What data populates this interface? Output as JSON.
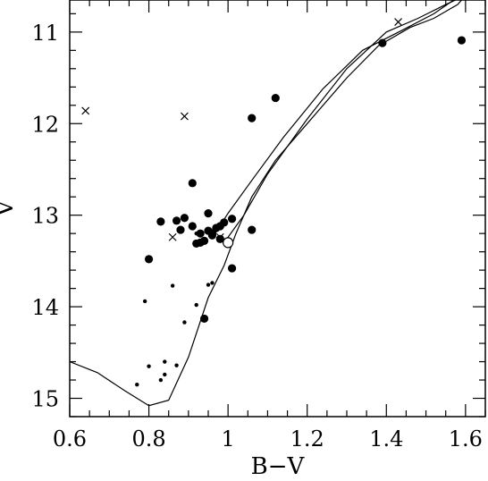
{
  "chart_data": {
    "type": "scatter",
    "title": "",
    "xlabel": "B−V",
    "ylabel": "V",
    "xlim": [
      0.6,
      1.65
    ],
    "ylim": [
      15.2,
      10.65
    ],
    "y_inverted": true,
    "grid": false,
    "x_ticks": [
      {
        "value": 0.6,
        "label": "0.6"
      },
      {
        "value": 0.8,
        "label": "0.8"
      },
      {
        "value": 1.0,
        "label": "1"
      },
      {
        "value": 1.2,
        "label": "1.2"
      },
      {
        "value": 1.4,
        "label": "1.4"
      },
      {
        "value": 1.6,
        "label": "1.6"
      }
    ],
    "y_ticks": [
      {
        "value": 11,
        "label": "11"
      },
      {
        "value": 12,
        "label": "12"
      },
      {
        "value": 13,
        "label": "13"
      },
      {
        "value": 14,
        "label": "14"
      },
      {
        "value": 15,
        "label": "15"
      }
    ],
    "isochrones": [
      {
        "points": [
          [
            0.6,
            14.6
          ],
          [
            0.67,
            14.72
          ],
          [
            0.74,
            14.92
          ],
          [
            0.8,
            15.08
          ],
          [
            0.85,
            15.02
          ],
          [
            0.9,
            14.55
          ],
          [
            0.95,
            13.9
          ],
          [
            0.99,
            13.55
          ],
          [
            1.02,
            13.2
          ],
          [
            1.06,
            12.8
          ],
          [
            1.12,
            12.4
          ],
          [
            1.2,
            12.0
          ],
          [
            1.3,
            11.5
          ],
          [
            1.38,
            11.15
          ],
          [
            1.46,
            10.95
          ],
          [
            1.52,
            10.85
          ],
          [
            1.58,
            10.7
          ],
          [
            1.6,
            10.6
          ]
        ]
      },
      {
        "points": [
          [
            0.99,
            13.3
          ],
          [
            1.04,
            13.0
          ],
          [
            1.1,
            12.55
          ],
          [
            1.2,
            11.95
          ],
          [
            1.3,
            11.4
          ],
          [
            1.4,
            11.0
          ],
          [
            1.48,
            10.85
          ],
          [
            1.55,
            10.7
          ],
          [
            1.6,
            10.6
          ]
        ]
      },
      {
        "points": [
          [
            0.96,
            13.25
          ],
          [
            1.0,
            12.98
          ],
          [
            1.06,
            12.62
          ],
          [
            1.14,
            12.15
          ],
          [
            1.24,
            11.62
          ],
          [
            1.34,
            11.2
          ],
          [
            1.44,
            10.98
          ],
          [
            1.52,
            10.8
          ],
          [
            1.57,
            10.65
          ]
        ]
      }
    ],
    "series": [
      {
        "marker": "filled-circle-large",
        "points": [
          [
            1.39,
            11.12
          ],
          [
            1.59,
            11.09
          ],
          [
            1.12,
            11.72
          ],
          [
            1.06,
            11.94
          ],
          [
            0.91,
            12.65
          ],
          [
            0.8,
            13.48
          ],
          [
            0.83,
            13.07
          ],
          [
            0.87,
            13.06
          ],
          [
            0.89,
            13.03
          ],
          [
            0.88,
            13.16
          ],
          [
            0.91,
            13.12
          ],
          [
            0.95,
            12.98
          ],
          [
            0.93,
            13.2
          ],
          [
            0.95,
            13.17
          ],
          [
            0.97,
            13.14
          ],
          [
            0.99,
            13.08
          ],
          [
            1.01,
            13.04
          ],
          [
            0.96,
            13.22
          ],
          [
            0.93,
            13.3
          ],
          [
            0.94,
            13.28
          ],
          [
            0.98,
            13.26
          ],
          [
            0.92,
            13.31
          ],
          [
            1.06,
            13.16
          ],
          [
            1.01,
            13.58
          ],
          [
            0.94,
            14.13
          ],
          [
            0.96,
            13.2
          ],
          [
            0.98,
            13.12
          ]
        ]
      },
      {
        "marker": "open-circle",
        "points": [
          [
            1.0,
            13.3
          ]
        ]
      },
      {
        "marker": "cross",
        "points": [
          [
            0.64,
            11.86
          ],
          [
            0.89,
            11.92
          ],
          [
            1.43,
            10.89
          ],
          [
            0.86,
            13.24
          ],
          [
            0.98,
            13.24
          ]
        ]
      },
      {
        "marker": "small-dot",
        "points": [
          [
            0.79,
            13.94
          ],
          [
            0.86,
            13.77
          ],
          [
            0.95,
            13.76
          ],
          [
            0.96,
            13.74
          ],
          [
            0.92,
            13.98
          ],
          [
            0.89,
            14.17
          ],
          [
            0.8,
            14.65
          ],
          [
            0.84,
            14.6
          ],
          [
            0.87,
            14.64
          ],
          [
            0.84,
            14.74
          ],
          [
            0.83,
            14.8
          ],
          [
            0.77,
            14.85
          ],
          [
            0.92,
            13.2
          ]
        ]
      }
    ]
  }
}
